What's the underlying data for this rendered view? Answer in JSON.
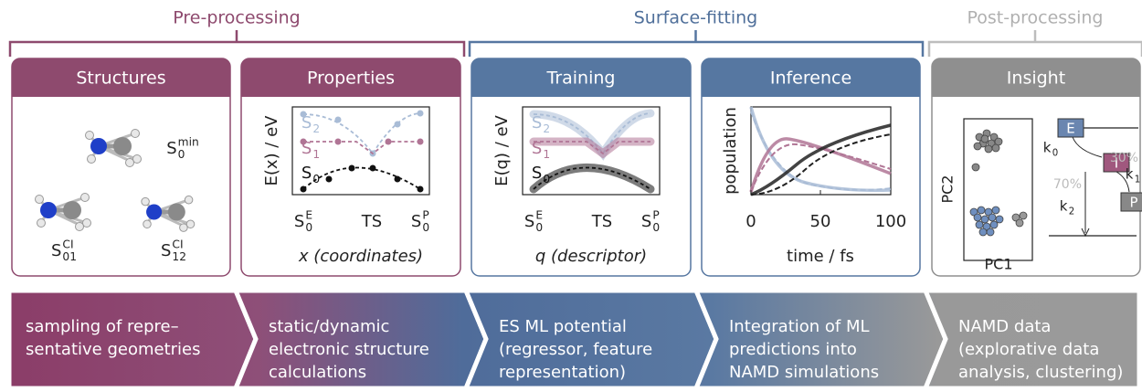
{
  "sections": [
    {
      "label": "Pre-processing"
    },
    {
      "label": "Surface-fitting"
    },
    {
      "label": "Post-processing"
    }
  ],
  "panels": [
    {
      "title": "Structures"
    },
    {
      "title": "Properties"
    },
    {
      "title": "Training"
    },
    {
      "title": "Inference"
    },
    {
      "title": "Insight"
    }
  ],
  "steps": [
    {
      "lines": [
        "sampling of repre–",
        "sentative geometries"
      ]
    },
    {
      "lines": [
        "static/dynamic",
        "electronic structure",
        "calculations"
      ]
    },
    {
      "lines": [
        "ES ML potential",
        "(regressor, feature",
        "representation)"
      ]
    },
    {
      "lines": [
        "Integration of ML",
        "predictions into",
        "NAMD simulations"
      ]
    },
    {
      "lines": [
        "NAMD data",
        "(explorative data",
        "analysis, clustering)"
      ]
    }
  ],
  "structures": [
    {
      "base": "S",
      "sub": "0",
      "sup": "min"
    },
    {
      "base": "S",
      "sub": "01",
      "sup": "CI"
    },
    {
      "base": "S",
      "sub": "12",
      "sup": "CI"
    }
  ],
  "properties_plot": {
    "y_label": "E(x) / eV",
    "states": [
      {
        "base": "S",
        "sub": "2"
      },
      {
        "base": "S",
        "sub": "1"
      },
      {
        "base": "S",
        "sub": "0"
      }
    ],
    "x_ticks": [
      {
        "base": "S",
        "sub": "0",
        "sup": "E"
      },
      {
        "base": "TS"
      },
      {
        "base": "S",
        "sub": "0",
        "sup": "P"
      }
    ],
    "x_label": "x (coordinates)"
  },
  "training_plot": {
    "y_label": "E(q) / eV",
    "states": [
      {
        "base": "S",
        "sub": "2"
      },
      {
        "base": "S",
        "sub": "1"
      },
      {
        "base": "S",
        "sub": "0"
      }
    ],
    "x_ticks": [
      {
        "base": "S",
        "sub": "0",
        "sup": "E"
      },
      {
        "base": "TS"
      },
      {
        "base": "S",
        "sub": "0",
        "sup": "P"
      }
    ],
    "x_label": "q (descriptor)"
  },
  "inference_plot": {
    "y_label": "population",
    "x_ticks": [
      "0",
      "50",
      "100"
    ],
    "x_label": "time / fs"
  },
  "insight": {
    "x_label": "PC1",
    "y_label": "PC2",
    "nodes": [
      "E",
      "I",
      "P"
    ],
    "rates": [
      {
        "base": "k",
        "sub": "0"
      },
      {
        "base": "k",
        "sub": "1"
      },
      {
        "base": "k",
        "sub": "2"
      }
    ],
    "percents": [
      "30%",
      "70%"
    ]
  }
}
